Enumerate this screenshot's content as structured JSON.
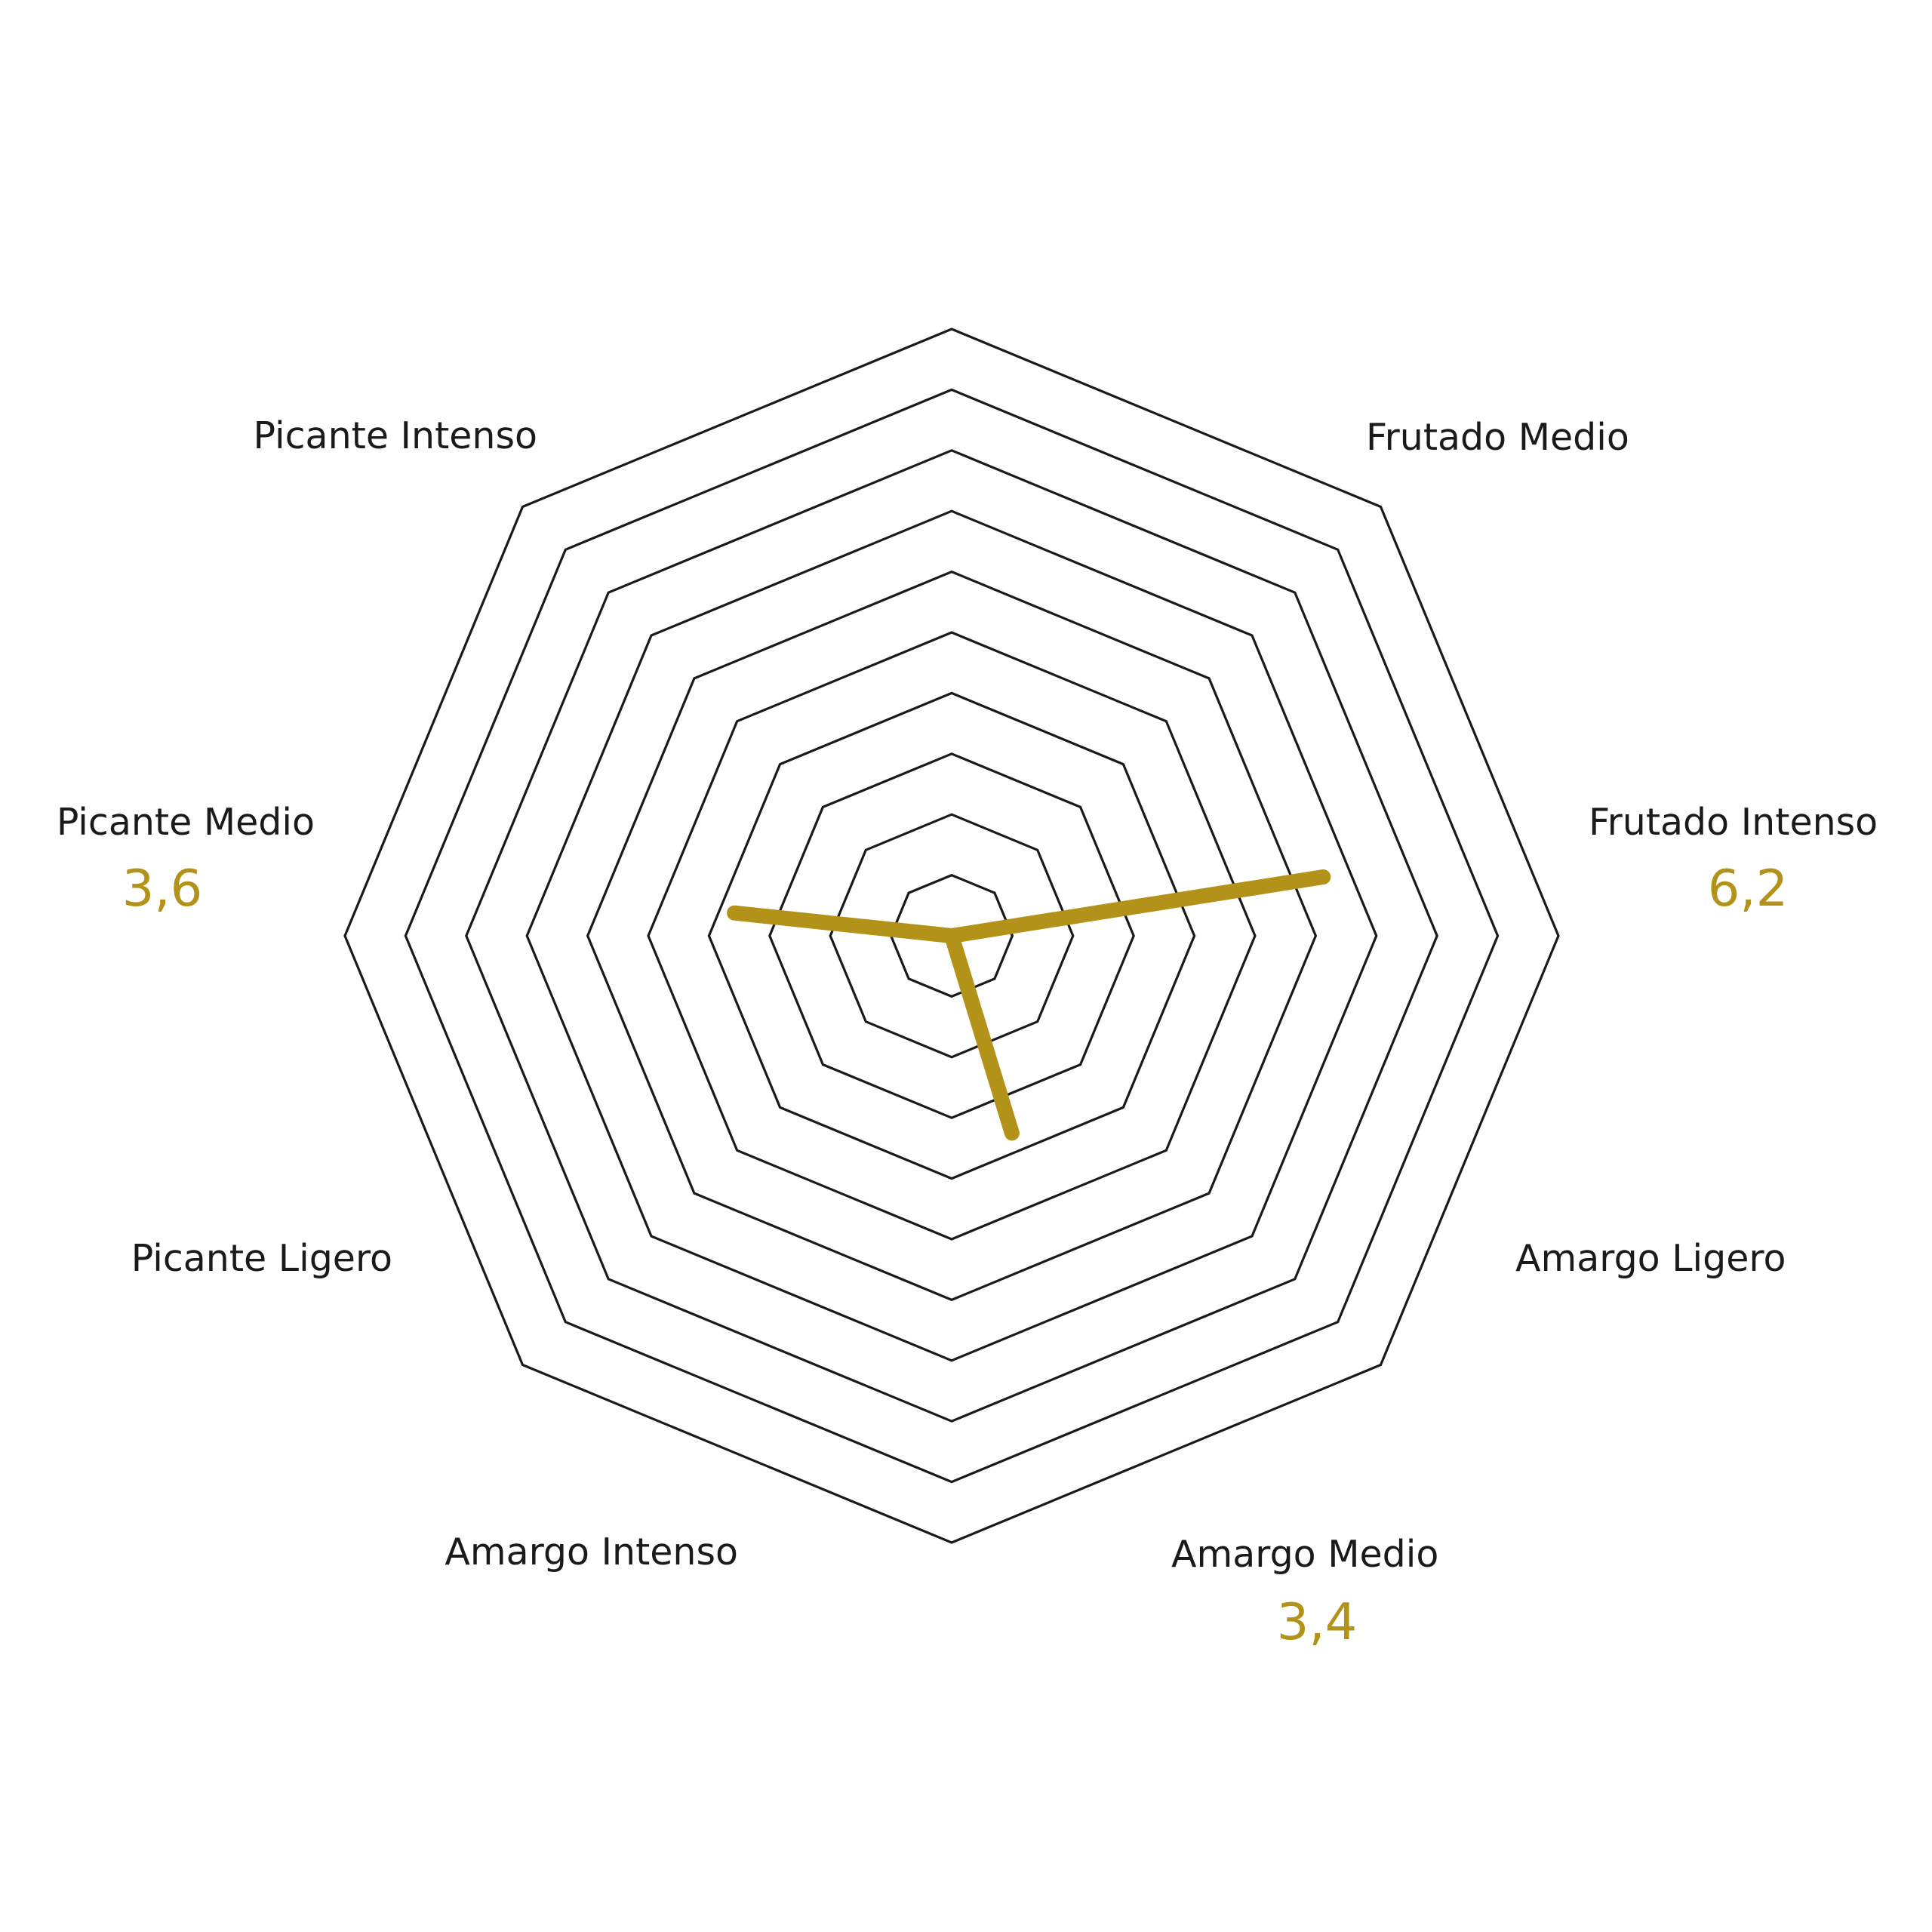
{
  "chart_data": {
    "type": "radar",
    "axes": [
      "Frutado Medio",
      "Frutado Intenso",
      "Amargo Ligero",
      "Amargo Medio",
      "Amargo Intenso",
      "Picante Ligero",
      "Picante Medio",
      "Picante Intenso"
    ],
    "series": [
      {
        "values": [
          0,
          6.2,
          0,
          3.4,
          0,
          0,
          3.6,
          0
        ]
      }
    ],
    "value_labels": [
      {
        "axis": "Frutado Intenso",
        "text": "6,2"
      },
      {
        "axis": "Amargo Medio",
        "text": "3,4"
      },
      {
        "axis": "Picante Medio",
        "text": "3,6"
      }
    ],
    "rings": [
      1,
      2,
      3,
      4,
      5,
      6,
      7,
      8,
      9,
      10
    ],
    "max": 10,
    "grid": true,
    "legend": "none"
  },
  "colors": {
    "series": "#b3921a",
    "grid": "#1a1a1a",
    "text": "#1a1a1a"
  }
}
